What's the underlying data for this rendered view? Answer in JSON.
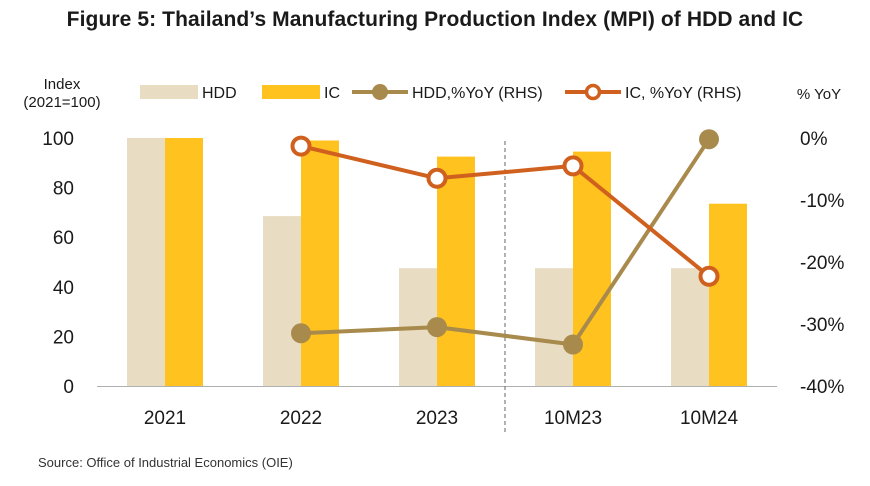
{
  "title": "Figure 5: Thailand’s Manufacturing Production Index (MPI) of HDD and IC",
  "source": "Source: Office of Industrial Economics (OIE)",
  "chart_data": {
    "type": "bar",
    "categories": [
      "2021",
      "2022",
      "2023",
      "10M23",
      "10M24"
    ],
    "left_axis": {
      "label_line1": "Index",
      "label_line2": "(2021=100)",
      "ylim": [
        0,
        100
      ],
      "ticks": [
        0,
        20,
        40,
        60,
        80,
        100
      ],
      "tick_labels": [
        "0",
        "20",
        "40",
        "60",
        "80",
        "100"
      ]
    },
    "right_axis": {
      "label": "% YoY",
      "ylim": [
        -40,
        0
      ],
      "ticks": [
        0,
        -10,
        -20,
        -30,
        -40
      ],
      "tick_labels": [
        "0%",
        "-10%",
        "-20%",
        "-30%",
        "-40%"
      ]
    },
    "series": [
      {
        "name": "HDD",
        "type": "bar",
        "axis": "left",
        "color": "#E8DCC2",
        "values": [
          100,
          68.5,
          47.5,
          47.5,
          47.5
        ]
      },
      {
        "name": "IC",
        "type": "bar",
        "axis": "left",
        "color": "#FFC21E",
        "values": [
          100,
          99,
          92.5,
          94.5,
          73.5
        ]
      },
      {
        "name": "HDD,%YoY (RHS)",
        "type": "line",
        "axis": "right",
        "color": "#A88A4C",
        "x": [
          "2022",
          "2023",
          "10M23",
          "10M24"
        ],
        "values": [
          -31.5,
          -30.5,
          -33.3,
          -0.2
        ]
      },
      {
        "name": "IC, %YoY (RHS)",
        "type": "line",
        "axis": "right",
        "color": "#D0601E",
        "x": [
          "2022",
          "2023",
          "10M23",
          "10M24"
        ],
        "values": [
          -1.3,
          -6.5,
          -4.5,
          -22.3
        ]
      }
    ],
    "divider_between": [
      "2023",
      "10M23"
    ],
    "legend_position": "top"
  }
}
